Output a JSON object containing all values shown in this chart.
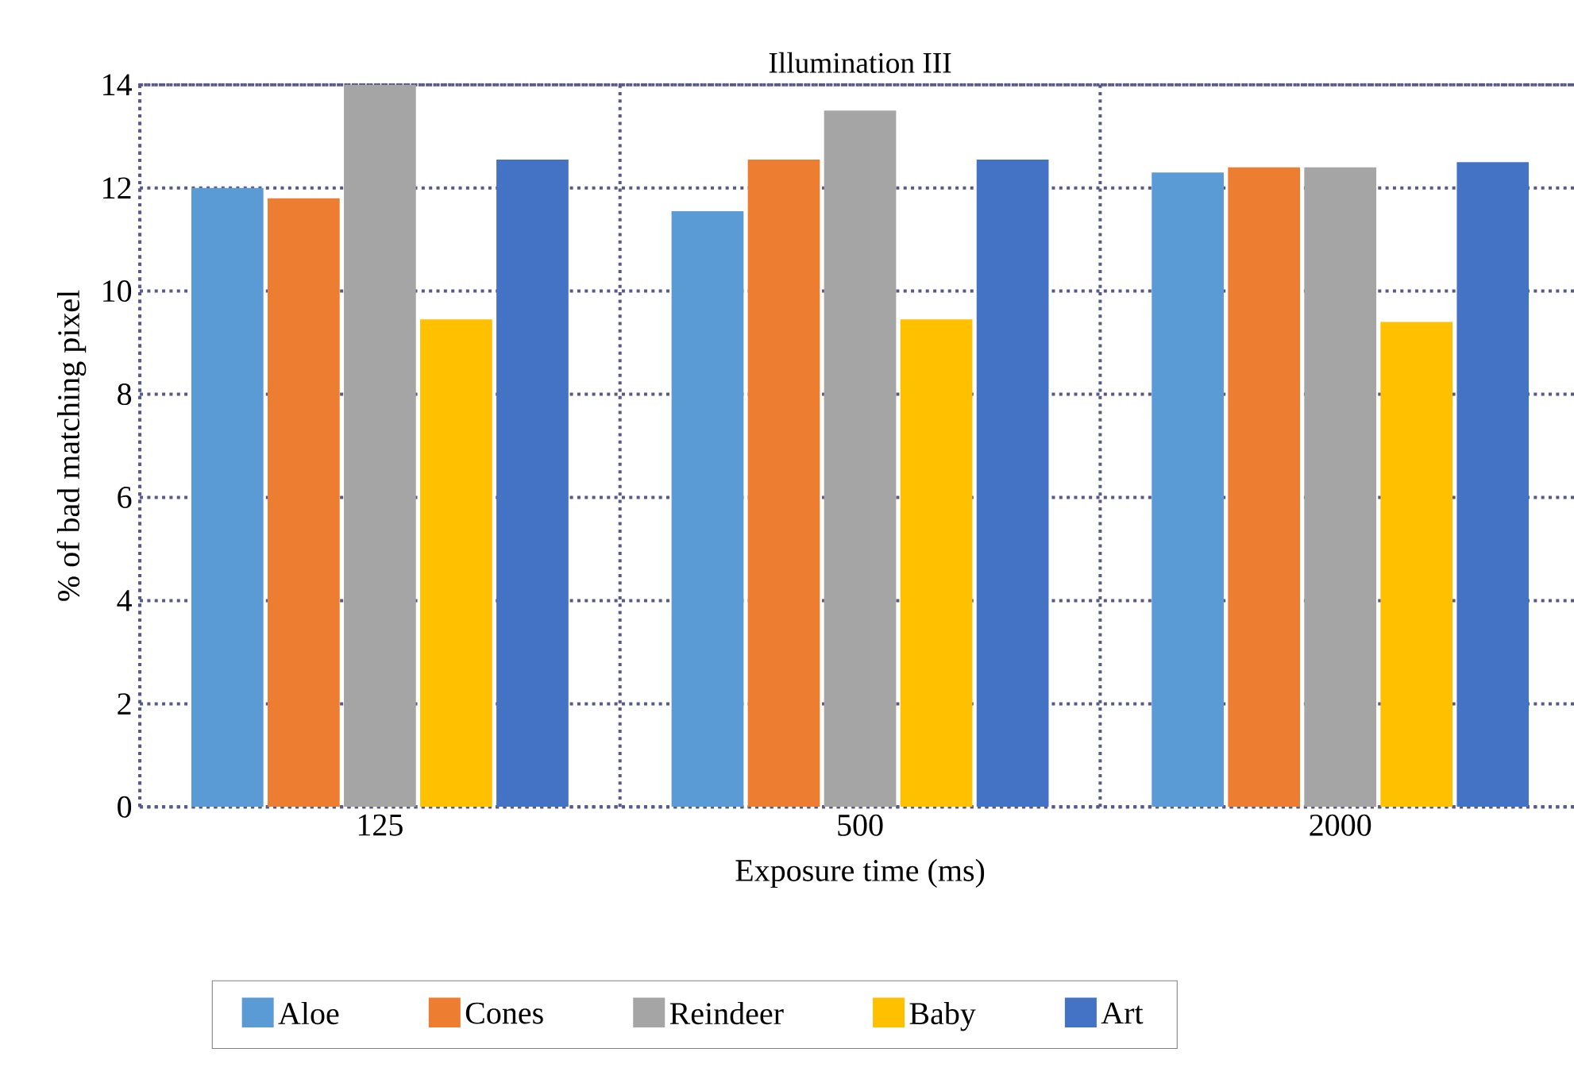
{
  "chart_data": {
    "type": "bar",
    "title": "Illumination III",
    "xlabel": "Exposure time (ms)",
    "ylabel": "% of bad matching pixel",
    "categories": [
      "125",
      "500",
      "2000"
    ],
    "series": [
      {
        "name": "Aloe",
        "color": "#5b9bd5",
        "values": [
          12.0,
          11.55,
          12.3
        ]
      },
      {
        "name": "Cones",
        "color": "#ed7d31",
        "values": [
          11.8,
          12.55,
          12.4
        ]
      },
      {
        "name": "Reindeer",
        "color": "#a5a5a5",
        "values": [
          14.0,
          13.5,
          12.4
        ]
      },
      {
        "name": "Baby",
        "color": "#ffc000",
        "values": [
          9.45,
          9.45,
          9.4
        ]
      },
      {
        "name": "Art",
        "color": "#4472c4",
        "values": [
          12.55,
          12.55,
          12.5
        ]
      }
    ],
    "ylim": [
      0,
      14
    ],
    "yticks": [
      0,
      2,
      4,
      6,
      8,
      10,
      12,
      14
    ],
    "grid": true,
    "legend": "bottom"
  }
}
